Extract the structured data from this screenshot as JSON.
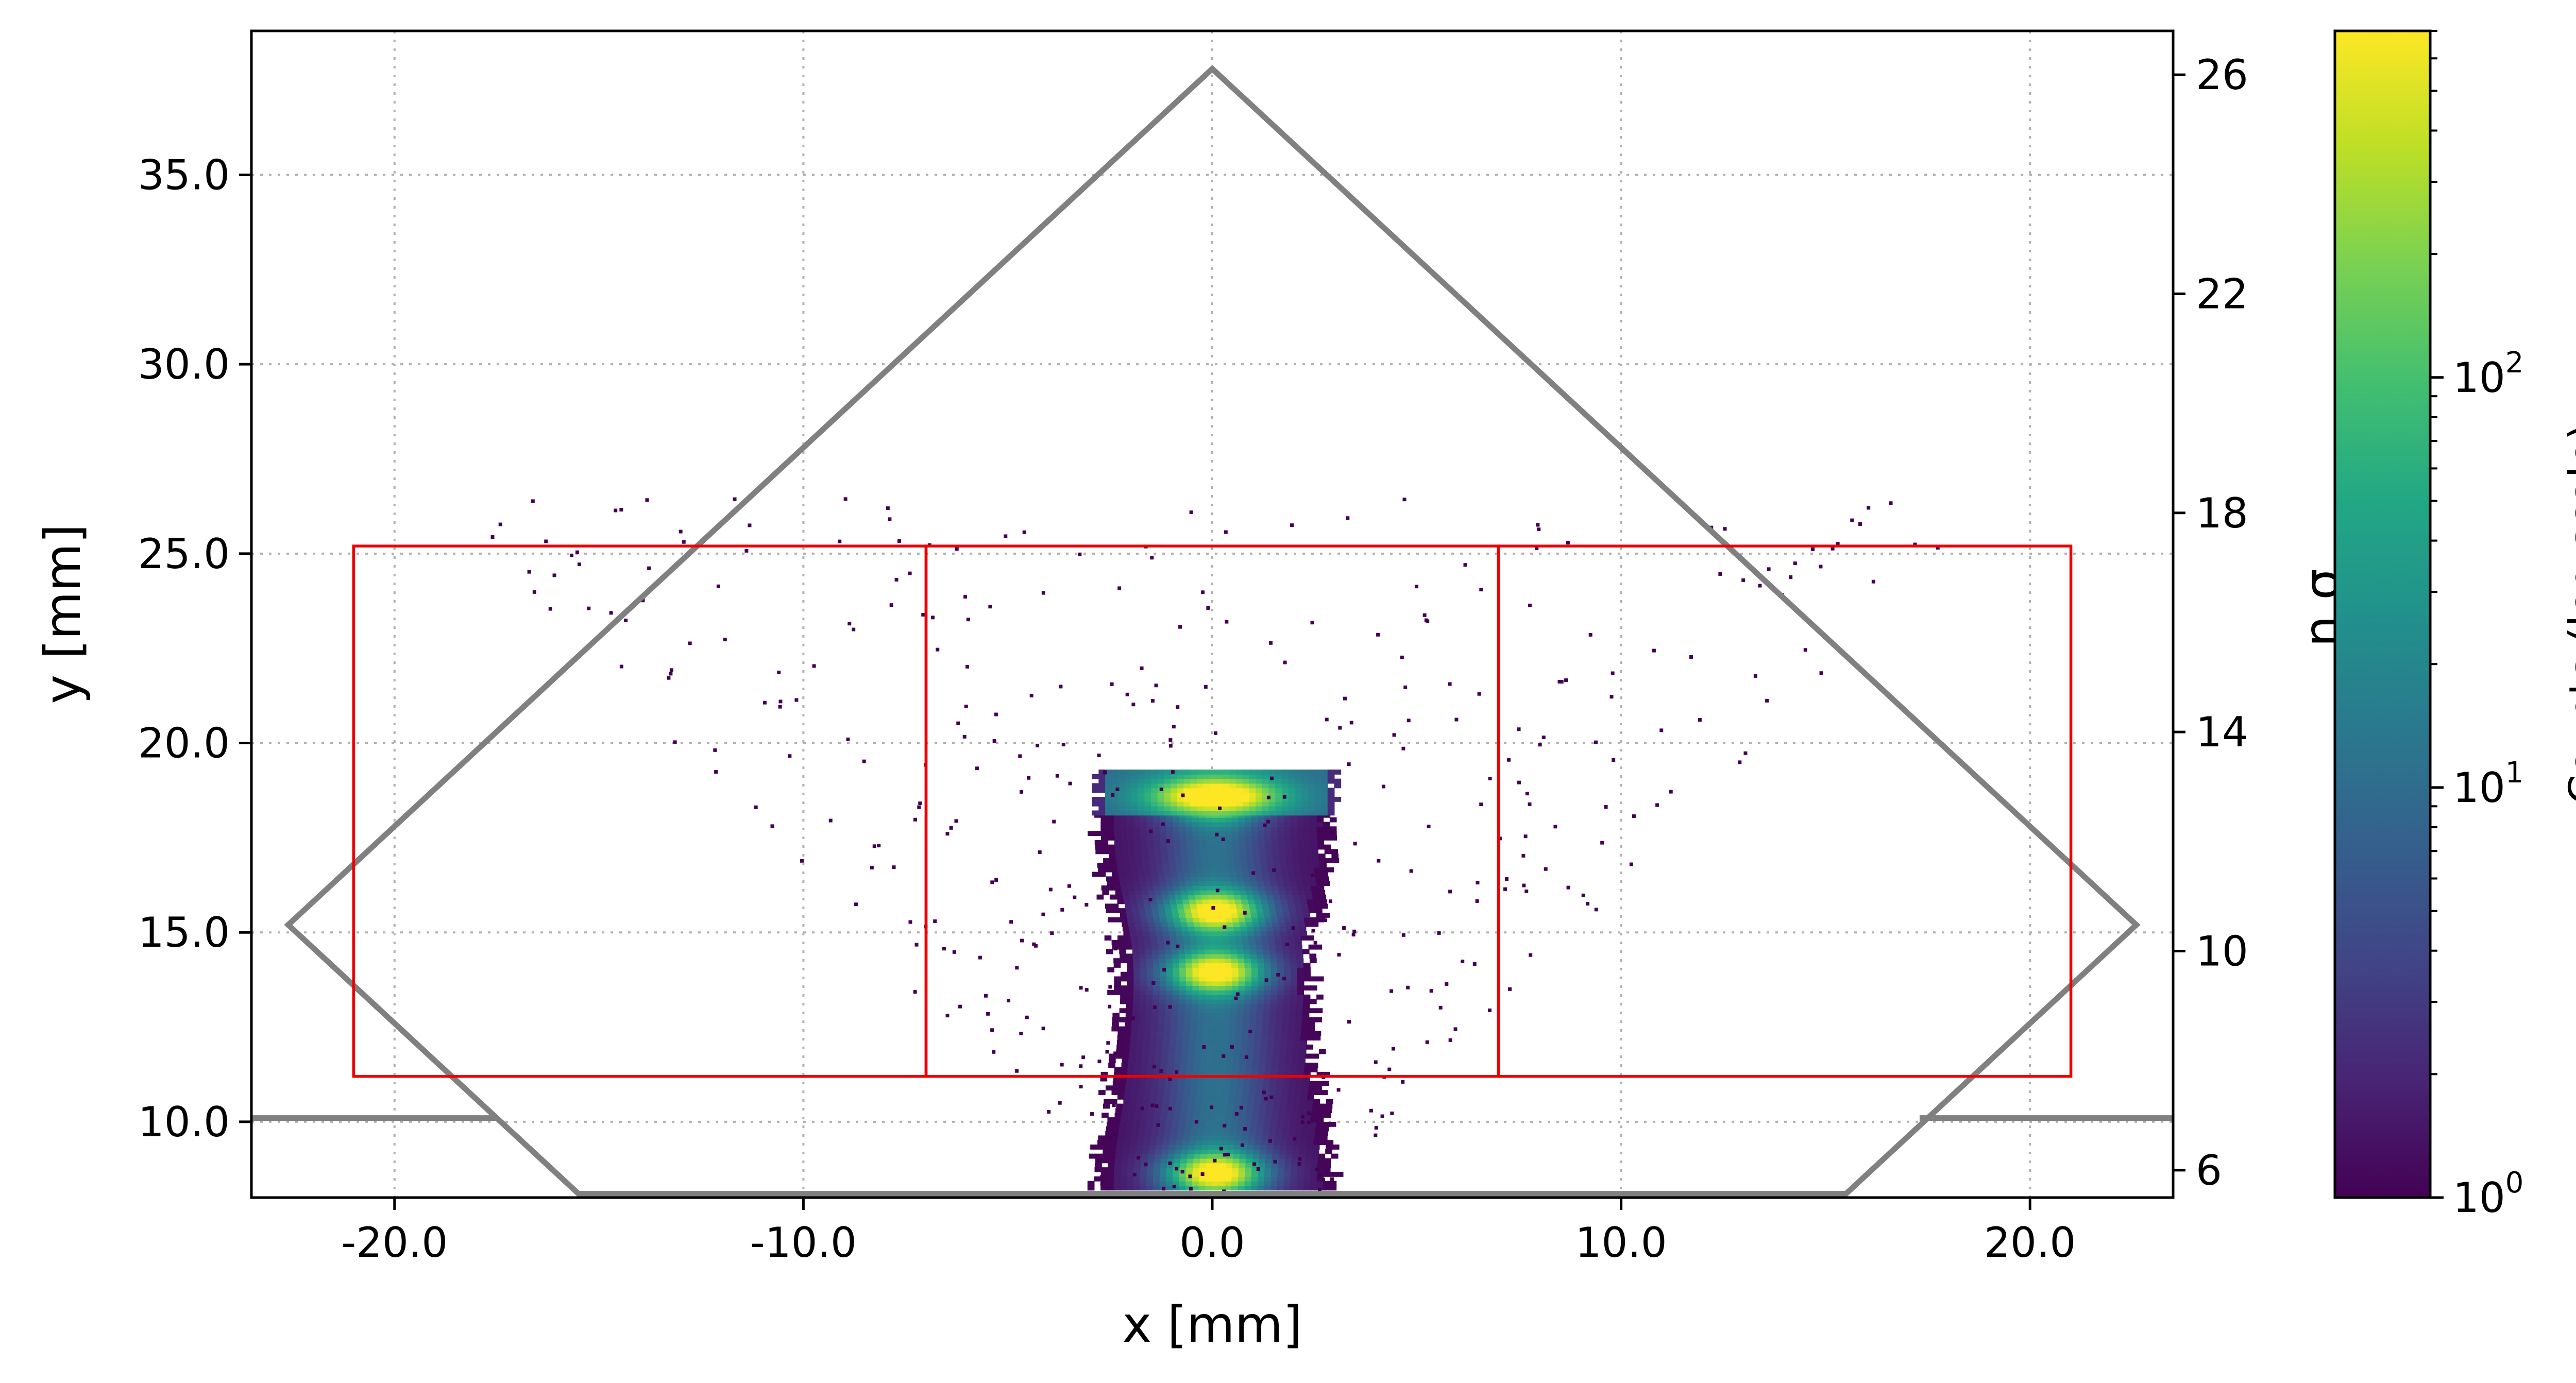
{
  "chart_data": {
    "type": "heatmap",
    "xlabel": "x [mm]",
    "ylabel": "y [mm]",
    "y2label": "n σ",
    "colorbar_label": "Counts (log scale)",
    "xlim": [
      -23.5,
      23.5
    ],
    "ylim": [
      8.0,
      38.8
    ],
    "y2lim": [
      5.5,
      26.8
    ],
    "x_ticks": [
      -20,
      -10,
      0,
      10,
      20
    ],
    "x_tick_labels": [
      "-20.0",
      "-10.0",
      "0.0",
      "10.0",
      "20.0"
    ],
    "y_ticks": [
      10,
      15,
      20,
      25,
      30,
      35
    ],
    "y_tick_labels": [
      "10.0",
      "15.0",
      "20.0",
      "25.0",
      "30.0",
      "35.0"
    ],
    "y2_ticks": [
      6,
      10,
      14,
      18,
      22,
      26
    ],
    "y2_tick_labels": [
      "6",
      "10",
      "14",
      "18",
      "22",
      "26"
    ],
    "grid": true,
    "colormap": "viridis",
    "color_scale": "log",
    "color_range": [
      1,
      700
    ],
    "colorbar_ticks": [
      {
        "base": "10",
        "exp": "0",
        "value": 1
      },
      {
        "base": "10",
        "exp": "1",
        "value": 10
      },
      {
        "base": "10",
        "exp": "2",
        "value": 100
      }
    ],
    "aperture_polygon": {
      "color": "#808080",
      "points": [
        [
          -15.5,
          8.1
        ],
        [
          -22.6,
          15.2
        ],
        [
          0.0,
          37.8
        ],
        [
          22.6,
          15.2
        ],
        [
          15.5,
          8.1
        ]
      ]
    },
    "side_lines": {
      "color": "#808080",
      "y": 10.1,
      "segments": [
        [
          -23.5,
          -17.5
        ],
        [
          17.3,
          23.5
        ]
      ]
    },
    "regions": {
      "color": "#ee0000",
      "y_range": [
        11.2,
        25.2
      ],
      "boxes": [
        [
          -21.0,
          -7.0
        ],
        [
          -7.0,
          7.0
        ],
        [
          7.0,
          21.0
        ]
      ]
    },
    "beam": {
      "x_center": 0.0,
      "y_range": [
        8.2,
        19.3
      ],
      "halo_half_width": 3.0,
      "core_peaks_y": [
        8.6,
        13.9,
        15.5,
        18.5
      ],
      "band_top_y": [
        18.1,
        19.2
      ],
      "band_half_width": 2.7,
      "scatter_y_range": [
        8.2,
        26.5
      ]
    }
  }
}
